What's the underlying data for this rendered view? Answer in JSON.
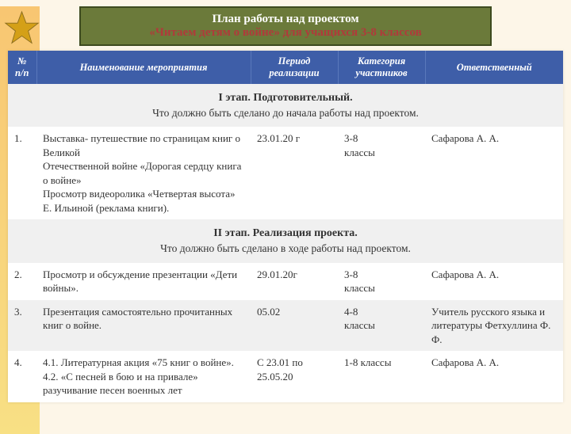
{
  "header": {
    "title": "План работы над проектом",
    "subtitle": "«Читаем детям о войне» для учащихся 3-8 классов"
  },
  "table": {
    "columns": {
      "num": "№ п/п",
      "name": "Наименование мероприятия",
      "period": "Период реализации",
      "category": "Категория участников",
      "responsible": "Ответственный"
    },
    "stage1": {
      "title": "I этап. Подготовительный.",
      "sub": "Что должно быть сделано до начала работы над проектом."
    },
    "row1": {
      "num": "1.",
      "name": "Выставка- путешествие по страницам книг о Великой\nОтечественной войне «Дорогая сердцу книга о войне»\nПросмотр видеоролика «Четвертая высота» Е. Ильиной (реклама книги).",
      "period": "23.01.20 г",
      "category": "3-8\n классы",
      "responsible": "Сафарова А. А."
    },
    "stage2": {
      "title": "II этап. Реализация  проекта.",
      "sub": "Что должно быть сделано в ходе работы над проектом."
    },
    "row2": {
      "num": "2.",
      "name": "Просмотр и обсуждение презентации «Дети  войны».",
      "period": "29.01.20г",
      "category": "3-8\nклассы",
      "responsible": "Сафарова А. А."
    },
    "row3": {
      "num": "3.",
      "name": "Презентация  самостоятельно прочитанных книг о войне.",
      "period": "05.02",
      "category": "4-8\nклассы",
      "responsible": "Учитель русского языка и литературы Фетхуллина Ф. Ф."
    },
    "row4": {
      "num": "4.",
      "name": "4.1. Литературная акция «75 книг о войне».\n4.2. «С песней в бою и на привале» разучивание песен военных лет",
      "period": "С 23.01 по 25.05.20",
      "category": "1-8 классы",
      "responsible": "Сафарова А. А."
    }
  },
  "colors": {
    "header_bg": "#6b7a3a",
    "header_border": "#3d4a1f",
    "subtitle_color": "#b03a3a",
    "thead_bg": "#3e5ea8",
    "page_bg": "#fdf6e8",
    "stripe_bg": "#f5d142",
    "stage_bg": "#f0f0f0"
  }
}
